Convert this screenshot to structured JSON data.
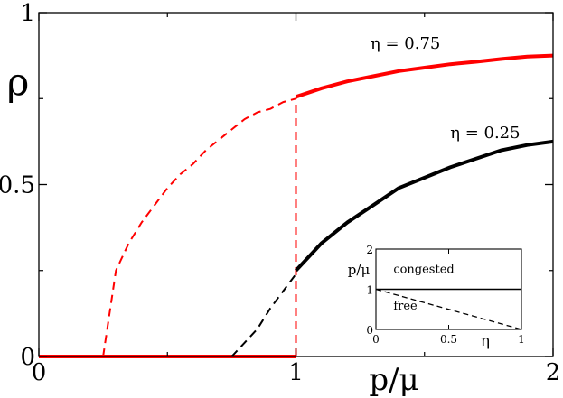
{
  "chart_data": {
    "type": "line",
    "xlabel": "p/μ",
    "ylabel": "ρ",
    "xlim": [
      0,
      2
    ],
    "ylim": [
      0,
      1
    ],
    "xticks": [
      {
        "v": 0,
        "label": "0"
      },
      {
        "v": 1,
        "label": "1"
      },
      {
        "v": 2,
        "label": "2"
      }
    ],
    "yticks": [
      {
        "v": 0,
        "label": "0"
      },
      {
        "v": 0.5,
        "label": "0.5"
      },
      {
        "v": 1,
        "label": "1"
      }
    ],
    "grid": false,
    "series": [
      {
        "name": "η = 0.75",
        "color": "#ff0000",
        "label_pos": [
          1.29,
          0.895
        ],
        "segments": [
          {
            "style": "solid",
            "points": [
              [
                0,
                0
              ],
              [
                1,
                0
              ]
            ]
          },
          {
            "style": "dashed",
            "points": [
              [
                0.25,
                0
              ],
              [
                0.3,
                0.25
              ],
              [
                0.35,
                0.33
              ],
              [
                0.4,
                0.39
              ],
              [
                0.45,
                0.44
              ],
              [
                0.5,
                0.49
              ],
              [
                0.55,
                0.53
              ],
              [
                0.6,
                0.56
              ],
              [
                0.65,
                0.6
              ],
              [
                0.7,
                0.63
              ],
              [
                0.75,
                0.66
              ],
              [
                0.8,
                0.69
              ],
              [
                0.85,
                0.71
              ],
              [
                0.9,
                0.72
              ],
              [
                0.95,
                0.74
              ],
              [
                1.0,
                0.75
              ]
            ]
          },
          {
            "style": "dashed",
            "points": [
              [
                1.0,
                0
              ],
              [
                1.0,
                0.75
              ]
            ]
          },
          {
            "style": "solid",
            "points": [
              [
                1.0,
                0.755
              ],
              [
                1.1,
                0.78
              ],
              [
                1.2,
                0.8
              ],
              [
                1.3,
                0.815
              ],
              [
                1.4,
                0.83
              ],
              [
                1.5,
                0.84
              ],
              [
                1.6,
                0.85
              ],
              [
                1.7,
                0.857
              ],
              [
                1.8,
                0.865
              ],
              [
                1.9,
                0.872
              ],
              [
                2.0,
                0.875
              ]
            ]
          }
        ]
      },
      {
        "name": "η = 0.25",
        "color": "#000000",
        "label_pos": [
          1.6,
          0.635
        ],
        "segments": [
          {
            "style": "dashed",
            "points": [
              [
                0.75,
                0
              ],
              [
                0.8,
                0.04
              ],
              [
                0.85,
                0.08
              ],
              [
                0.9,
                0.14
              ],
              [
                0.95,
                0.19
              ],
              [
                1.0,
                0.24
              ]
            ]
          },
          {
            "style": "solid",
            "points": [
              [
                1.0,
                0.25
              ],
              [
                1.1,
                0.33
              ],
              [
                1.2,
                0.39
              ],
              [
                1.3,
                0.44
              ],
              [
                1.4,
                0.49
              ],
              [
                1.5,
                0.52
              ],
              [
                1.6,
                0.55
              ],
              [
                1.7,
                0.575
              ],
              [
                1.8,
                0.6
              ],
              [
                1.9,
                0.615
              ],
              [
                2.0,
                0.625
              ]
            ]
          }
        ]
      }
    ],
    "inset": {
      "xlabel": "η",
      "ylabel": "p/μ",
      "xlim": [
        0,
        1
      ],
      "ylim": [
        0,
        2
      ],
      "xticks": [
        {
          "v": 0,
          "label": "0"
        },
        {
          "v": 0.5,
          "label": "0.5"
        },
        {
          "v": 1,
          "label": "1"
        }
      ],
      "yticks": [
        {
          "v": 0,
          "label": "0"
        },
        {
          "v": 1,
          "label": "1"
        },
        {
          "v": 2,
          "label": "2"
        }
      ],
      "regions": [
        {
          "label": "congested",
          "pos": [
            0.12,
            1.4
          ]
        },
        {
          "label": "free",
          "pos": [
            0.12,
            0.5
          ]
        }
      ],
      "lines": [
        {
          "style": "solid",
          "color": "#000000",
          "points": [
            [
              0,
              1
            ],
            [
              1,
              1
            ]
          ]
        },
        {
          "style": "dashed",
          "color": "#000000",
          "points": [
            [
              0,
              1
            ],
            [
              1,
              0
            ]
          ]
        }
      ]
    }
  }
}
